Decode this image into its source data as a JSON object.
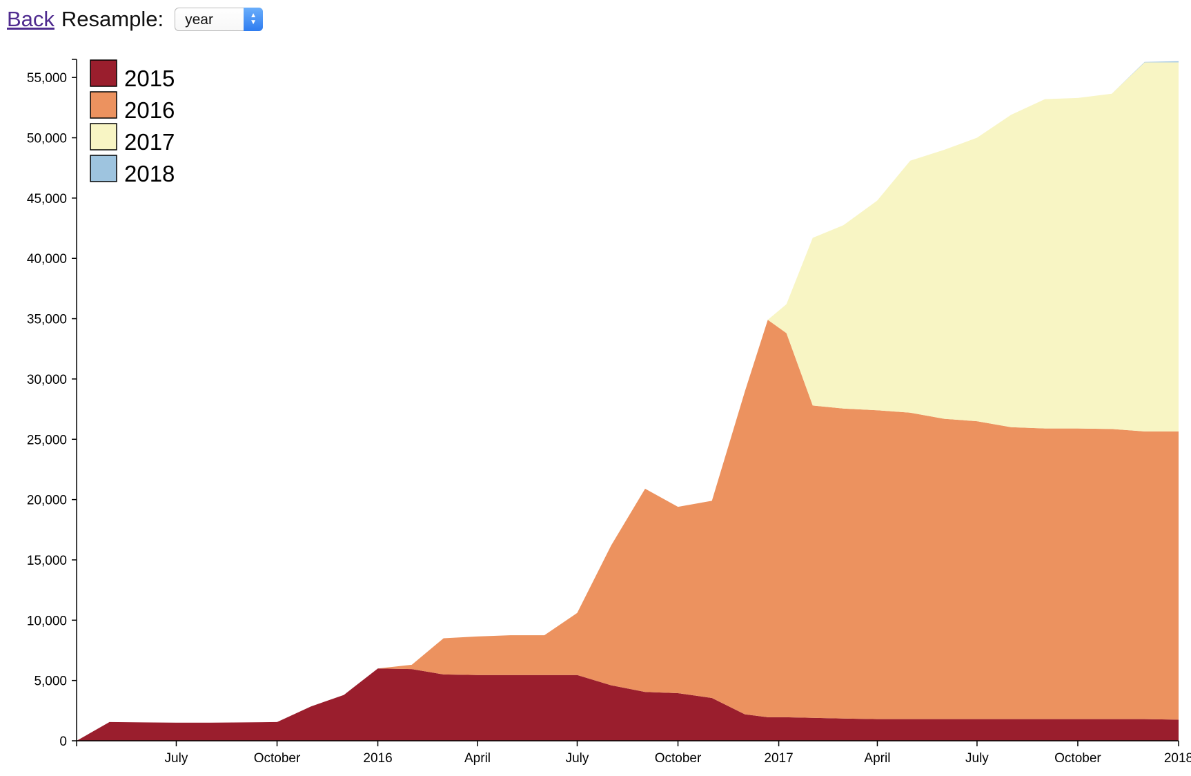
{
  "nav": {
    "back_label": "Back",
    "resample_label": "Resample:",
    "resample_selected": "year"
  },
  "chart_data": {
    "type": "area",
    "stacked": true,
    "x_axis": {
      "type": "date",
      "domain": [
        "2015-04-01",
        "2018-01-01"
      ],
      "ticks": [
        {
          "date": "2015-07-01",
          "label": "July"
        },
        {
          "date": "2015-10-01",
          "label": "October"
        },
        {
          "date": "2016-01-01",
          "label": "2016"
        },
        {
          "date": "2016-04-01",
          "label": "April"
        },
        {
          "date": "2016-07-01",
          "label": "July"
        },
        {
          "date": "2016-10-01",
          "label": "October"
        },
        {
          "date": "2017-01-01",
          "label": "2017"
        },
        {
          "date": "2017-04-01",
          "label": "April"
        },
        {
          "date": "2017-07-01",
          "label": "July"
        },
        {
          "date": "2017-10-01",
          "label": "October"
        },
        {
          "date": "2018-01-01",
          "label": "2018"
        }
      ]
    },
    "y_axis": {
      "ylim": [
        0,
        56500
      ],
      "ticks": [
        0,
        5000,
        10000,
        15000,
        20000,
        25000,
        30000,
        35000,
        40000,
        45000,
        50000,
        55000
      ],
      "tick_labels": [
        "0",
        "5,000",
        "10,000",
        "15,000",
        "20,000",
        "25,000",
        "30,000",
        "35,000",
        "40,000",
        "45,000",
        "50,000",
        "55,000"
      ]
    },
    "legend_position": "top-left",
    "grid": false,
    "x": [
      "2015-04-01",
      "2015-05-01",
      "2015-06-01",
      "2015-07-01",
      "2015-08-01",
      "2015-09-01",
      "2015-10-01",
      "2015-11-01",
      "2015-12-01",
      "2016-01-01",
      "2016-02-01",
      "2016-03-01",
      "2016-04-01",
      "2016-05-01",
      "2016-06-01",
      "2016-07-01",
      "2016-08-01",
      "2016-09-01",
      "2016-10-01",
      "2016-11-01",
      "2016-12-01",
      "2016-12-22",
      "2017-01-08",
      "2017-02-01",
      "2017-03-01",
      "2017-04-01",
      "2017-05-01",
      "2017-06-01",
      "2017-07-01",
      "2017-08-01",
      "2017-09-01",
      "2017-10-01",
      "2017-11-01",
      "2017-12-01",
      "2018-01-01"
    ],
    "series": [
      {
        "name": "2015",
        "color": "#9a1e2d",
        "values": [
          0,
          1550,
          1520,
          1500,
          1500,
          1520,
          1550,
          2850,
          3800,
          6000,
          5950,
          5500,
          5450,
          5450,
          5450,
          5450,
          4600,
          4050,
          3950,
          3550,
          2200,
          1950,
          1950,
          1900,
          1850,
          1800,
          1800,
          1800,
          1800,
          1800,
          1800,
          1800,
          1800,
          1800,
          1750
        ]
      },
      {
        "name": "2016",
        "color": "#ec925f",
        "values": [
          0,
          0,
          0,
          0,
          0,
          0,
          0,
          0,
          0,
          0,
          350,
          3000,
          3200,
          3300,
          3300,
          5150,
          11600,
          16850,
          15450,
          16350,
          26750,
          32950,
          31850,
          25900,
          25700,
          25600,
          25400,
          24900,
          24700,
          24200,
          24100,
          24100,
          24050,
          23850,
          23900
        ]
      },
      {
        "name": "2017",
        "color": "#f8f5c4",
        "values": [
          0,
          0,
          0,
          0,
          0,
          0,
          0,
          0,
          0,
          0,
          0,
          0,
          0,
          0,
          0,
          0,
          0,
          0,
          0,
          0,
          0,
          0,
          2400,
          13900,
          15200,
          17400,
          20900,
          22300,
          23500,
          25900,
          27300,
          27400,
          27800,
          30600,
          30600
        ]
      },
      {
        "name": "2018",
        "color": "#9ec4df",
        "values": [
          0,
          0,
          0,
          0,
          0,
          0,
          0,
          0,
          0,
          0,
          0,
          0,
          0,
          0,
          0,
          0,
          0,
          0,
          0,
          0,
          0,
          0,
          0,
          0,
          0,
          0,
          0,
          0,
          0,
          0,
          0,
          0,
          0,
          40,
          100
        ]
      }
    ]
  }
}
